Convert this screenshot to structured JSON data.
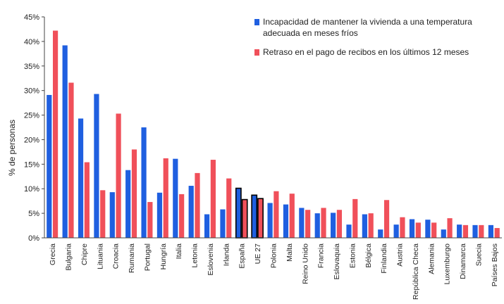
{
  "chart_data": {
    "type": "bar",
    "ylabel": "% de personas",
    "ylim": [
      0,
      45
    ],
    "yticks": [
      "0%",
      "5%",
      "10%",
      "15%",
      "20%",
      "25%",
      "30%",
      "35%",
      "40%",
      "45%"
    ],
    "grid": false,
    "legend_position": "top-right",
    "categories": [
      "Grecia",
      "Bulgaria",
      "Chipre",
      "Lituania",
      "Croacia",
      "Rumania",
      "Portugal",
      "Hungría",
      "Italia",
      "Letonia",
      "Eslovenia",
      "Irlanda",
      "España",
      "UE 27",
      "Polonia",
      "Malta",
      "Reino Unido",
      "Francia",
      "Eslovaquia",
      "Estonia",
      "Bélgica",
      "Finlandia",
      "Austria",
      "República Checa",
      "Alemania",
      "Luxemburgo",
      "Dinamarca",
      "Suecia",
      "Países Bajos"
    ],
    "highlighted_categories": [
      "España",
      "UE 27"
    ],
    "series": [
      {
        "name": "Incapacidad de mantener la vivienda a una temperatura adecuada en meses fríos",
        "color": "#1f5fe0",
        "values": [
          29.1,
          39.2,
          24.3,
          29.3,
          9.3,
          13.8,
          22.5,
          9.2,
          16.1,
          10.6,
          4.8,
          5.8,
          10.1,
          8.7,
          7.1,
          6.8,
          6.1,
          5.0,
          5.1,
          2.7,
          4.8,
          1.7,
          2.7,
          3.8,
          3.7,
          1.7,
          2.7,
          2.6,
          2.6
        ]
      },
      {
        "name": "Retraso en el pago de recibos en los últimos 12 meses",
        "color": "#f0505a",
        "values": [
          42.2,
          31.6,
          15.4,
          9.7,
          25.3,
          18.0,
          7.3,
          16.2,
          8.9,
          13.2,
          15.9,
          12.1,
          7.8,
          8.0,
          9.5,
          9.0,
          5.7,
          6.1,
          5.7,
          7.9,
          5.0,
          7.7,
          4.2,
          3.1,
          3.1,
          4.0,
          2.6,
          2.6,
          2.0
        ]
      }
    ]
  }
}
